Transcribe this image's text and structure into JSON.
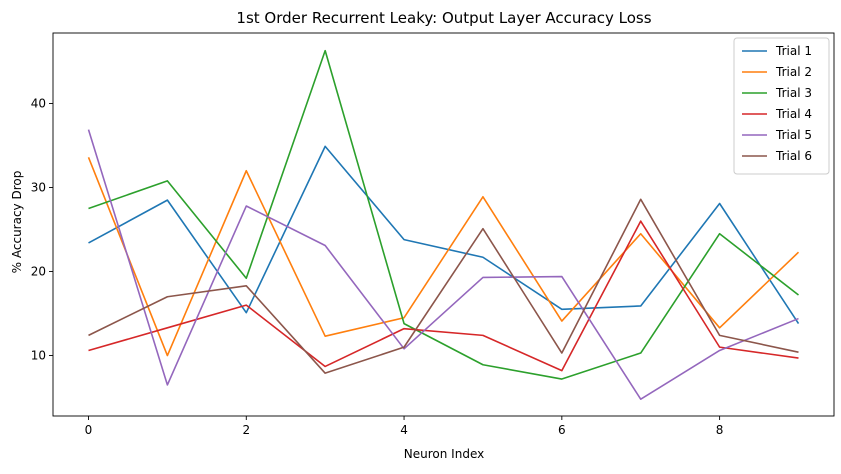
{
  "chart_data": {
    "type": "line",
    "title": "1st Order Recurrent Leaky: Output Layer Accuracy Loss",
    "xlabel": "Neuron Index",
    "ylabel": "% Accuracy Drop",
    "xlim": [
      -0.45,
      9.45
    ],
    "ylim": [
      2.8,
      48.4
    ],
    "xticks": [
      0,
      2,
      4,
      6,
      8
    ],
    "yticks": [
      10,
      20,
      30,
      40
    ],
    "grid": false,
    "legend_position": "top-right",
    "x": [
      0,
      1,
      2,
      3,
      4,
      5,
      6,
      7,
      8,
      9
    ],
    "series": [
      {
        "name": "Trial 1",
        "color": "#1f77b4",
        "values": [
          23.4,
          28.5,
          15.1,
          34.9,
          23.8,
          21.7,
          15.5,
          15.9,
          28.1,
          13.8
        ]
      },
      {
        "name": "Trial 2",
        "color": "#ff7f0e",
        "values": [
          33.6,
          10.0,
          32.0,
          12.3,
          14.5,
          28.9,
          14.1,
          24.5,
          13.3,
          22.3
        ]
      },
      {
        "name": "Trial 3",
        "color": "#2ca02c",
        "values": [
          27.5,
          30.8,
          19.2,
          46.3,
          13.8,
          8.9,
          7.2,
          10.3,
          24.5,
          17.2
        ]
      },
      {
        "name": "Trial 4",
        "color": "#d62728",
        "values": [
          10.6,
          13.3,
          16.0,
          8.7,
          13.2,
          12.4,
          8.2,
          26.0,
          11.0,
          9.7
        ]
      },
      {
        "name": "Trial 5",
        "color": "#9467bd",
        "values": [
          36.9,
          6.5,
          27.8,
          23.1,
          10.8,
          19.3,
          19.4,
          4.8,
          10.6,
          14.4
        ]
      },
      {
        "name": "Trial 6",
        "color": "#8c564b",
        "values": [
          12.4,
          17.0,
          18.3,
          7.9,
          11.0,
          25.1,
          10.3,
          28.6,
          12.4,
          10.4
        ]
      }
    ]
  }
}
